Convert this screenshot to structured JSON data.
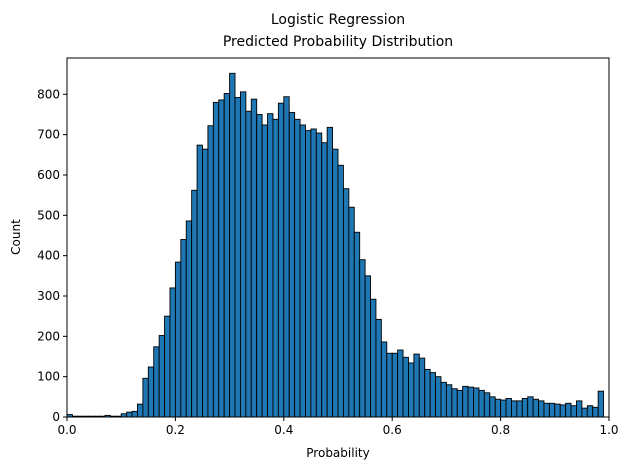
{
  "chart_data": {
    "type": "bar",
    "title": "Logistic Regression\nPredicted Probability Distribution",
    "title_lines": [
      "Logistic Regression",
      "Predicted Probability Distribution"
    ],
    "xlabel": "Probability",
    "ylabel": "Count",
    "xlim": [
      0,
      1
    ],
    "ylim": [
      0,
      890
    ],
    "xticks": [
      "0.0",
      "0.2",
      "0.4",
      "0.6",
      "0.8",
      "1.0"
    ],
    "yticks": [
      "0",
      "100",
      "200",
      "300",
      "400",
      "500",
      "600",
      "700",
      "800"
    ],
    "bar_color": "#1f77b4",
    "edge_color": "#000000",
    "grid": false,
    "bin_width": 0.01,
    "bins_start": 0.0,
    "values": [
      6,
      2,
      2,
      2,
      2,
      2,
      2,
      4,
      2,
      2,
      8,
      12,
      14,
      32,
      96,
      124,
      174,
      202,
      250,
      320,
      384,
      440,
      486,
      562,
      674,
      664,
      722,
      780,
      786,
      802,
      852,
      792,
      806,
      758,
      788,
      750,
      724,
      752,
      738,
      778,
      794,
      755,
      738,
      724,
      710,
      714,
      704,
      680,
      718,
      664,
      624,
      566,
      520,
      458,
      390,
      350,
      292,
      242,
      186,
      158,
      158,
      166,
      148,
      134,
      156,
      146,
      118,
      110,
      100,
      86,
      80,
      70,
      66,
      76,
      74,
      72,
      66,
      60,
      50,
      44,
      42,
      46,
      40,
      40,
      46,
      50,
      44,
      40,
      34,
      34,
      32,
      30,
      34,
      28,
      40,
      22,
      28,
      24,
      64
    ]
  }
}
